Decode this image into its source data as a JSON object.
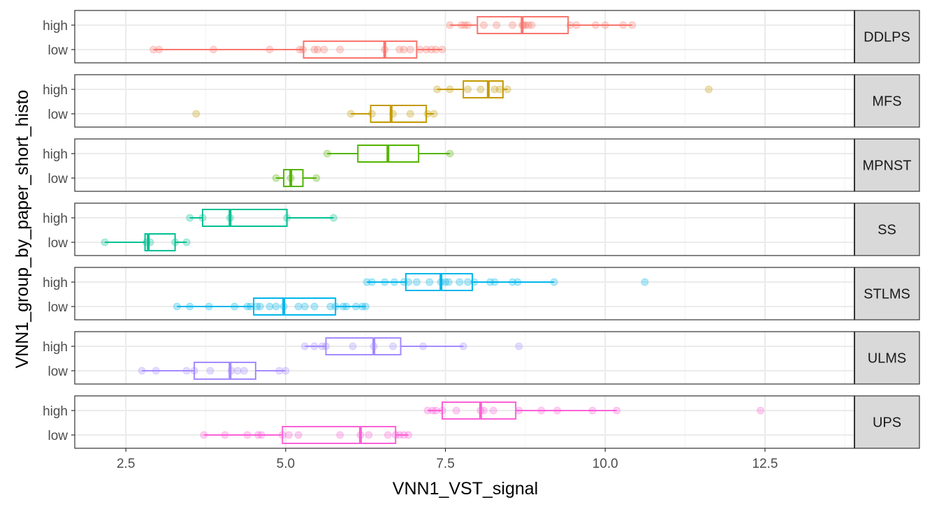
{
  "chart_data": {
    "type": "boxplot",
    "xlabel": "VNN1_VST_signal",
    "ylabel": "VNN1_group_by_paper_short_histo",
    "xlim": [
      1.7,
      13.9
    ],
    "x_ticks": [
      2.5,
      5.0,
      7.5,
      10.0,
      12.5
    ],
    "x_tick_labels": [
      "2.5",
      "5.0",
      "7.5",
      "10.0",
      "12.5"
    ],
    "categories": [
      "high",
      "low"
    ],
    "grid": true,
    "legend": "none",
    "facets": [
      {
        "label": "DDLPS",
        "color": "#F8766D",
        "groups": [
          {
            "name": "high",
            "q1": 8.0,
            "median": 8.7,
            "q3": 9.42,
            "whisker_low": 7.57,
            "whisker_high": 10.42,
            "points": [
              7.57,
              7.75,
              7.8,
              7.85,
              8.1,
              8.3,
              8.55,
              8.7,
              8.72,
              8.75,
              8.8,
              8.85,
              9.45,
              9.55,
              9.85,
              10.0,
              10.28,
              10.42
            ]
          },
          {
            "name": "low",
            "q1": 5.28,
            "median": 6.55,
            "q3": 7.05,
            "whisker_low": 2.93,
            "whisker_high": 7.45,
            "points": [
              2.93,
              3.02,
              3.87,
              4.75,
              5.22,
              5.27,
              5.45,
              5.5,
              5.6,
              5.85,
              6.55,
              6.78,
              6.85,
              6.95,
              7.1,
              7.2,
              7.28,
              7.35,
              7.45
            ]
          }
        ]
      },
      {
        "label": "MFS",
        "color": "#C49A00",
        "groups": [
          {
            "name": "high",
            "q1": 7.78,
            "median": 8.17,
            "q3": 8.4,
            "whisker_low": 7.37,
            "whisker_high": 8.47,
            "points": [
              7.37,
              7.57,
              7.85,
              8.05,
              8.27,
              8.35,
              8.47,
              11.62
            ]
          },
          {
            "name": "low",
            "q1": 6.33,
            "median": 6.65,
            "q3": 7.2,
            "whisker_low": 6.02,
            "whisker_high": 7.32,
            "points": [
              3.6,
              6.02,
              6.35,
              6.68,
              6.95,
              7.22,
              7.32
            ]
          }
        ]
      },
      {
        "label": "MPNST",
        "color": "#53B400",
        "groups": [
          {
            "name": "high",
            "q1": 6.13,
            "median": 6.6,
            "q3": 7.08,
            "whisker_low": 5.65,
            "whisker_high": 7.57,
            "points": [
              5.65,
              7.57
            ]
          },
          {
            "name": "low",
            "q1": 4.97,
            "median": 5.08,
            "q3": 5.27,
            "whisker_low": 4.85,
            "whisker_high": 5.48,
            "points": [
              4.85,
              5.08,
              5.48
            ]
          }
        ]
      },
      {
        "label": "SS",
        "color": "#00C094",
        "groups": [
          {
            "name": "high",
            "q1": 3.7,
            "median": 4.13,
            "q3": 5.02,
            "whisker_low": 3.5,
            "whisker_high": 5.75,
            "points": [
              3.5,
              3.7,
              4.13,
              5.02,
              5.75
            ]
          },
          {
            "name": "low",
            "q1": 2.8,
            "median": 2.85,
            "q3": 3.27,
            "whisker_low": 2.17,
            "whisker_high": 3.45,
            "points": [
              2.17,
              2.82,
              2.88,
              3.27,
              3.45
            ]
          }
        ]
      },
      {
        "label": "STLMS",
        "color": "#00B6EB",
        "groups": [
          {
            "name": "high",
            "q1": 6.88,
            "median": 7.43,
            "q3": 7.92,
            "whisker_low": 6.27,
            "whisker_high": 9.2,
            "points": [
              6.27,
              6.35,
              6.55,
              6.7,
              6.85,
              6.92,
              7.05,
              7.25,
              7.43,
              7.5,
              7.55,
              7.72,
              7.85,
              7.95,
              8.2,
              8.27,
              8.55,
              8.63,
              9.2,
              10.62
            ]
          },
          {
            "name": "low",
            "q1": 4.5,
            "median": 4.97,
            "q3": 5.78,
            "whisker_low": 3.3,
            "whisker_high": 6.25,
            "points": [
              3.3,
              3.5,
              3.8,
              4.2,
              4.4,
              4.45,
              4.55,
              4.6,
              4.75,
              4.85,
              4.97,
              5.2,
              5.3,
              5.45,
              5.7,
              5.78,
              5.9,
              5.95,
              6.1,
              6.2,
              6.25
            ]
          }
        ]
      },
      {
        "label": "ULMS",
        "color": "#A58AFF",
        "groups": [
          {
            "name": "high",
            "q1": 5.63,
            "median": 6.38,
            "q3": 6.8,
            "whisker_low": 5.3,
            "whisker_high": 7.78,
            "points": [
              5.3,
              5.45,
              5.57,
              5.63,
              6.05,
              6.38,
              6.68,
              7.15,
              7.78,
              8.65
            ]
          },
          {
            "name": "low",
            "q1": 3.57,
            "median": 4.13,
            "q3": 4.53,
            "whisker_low": 2.75,
            "whisker_high": 5.0,
            "points": [
              2.75,
              2.97,
              3.45,
              3.57,
              3.82,
              4.15,
              4.25,
              4.35,
              4.9,
              5.0
            ]
          }
        ]
      },
      {
        "label": "UPS",
        "color": "#FB61D7",
        "groups": [
          {
            "name": "high",
            "q1": 7.45,
            "median": 8.05,
            "q3": 8.6,
            "whisker_low": 7.22,
            "whisker_high": 10.18,
            "points": [
              7.22,
              7.3,
              7.35,
              7.45,
              7.67,
              8.05,
              8.1,
              8.25,
              8.65,
              9.0,
              9.25,
              9.8,
              10.18,
              12.43
            ]
          },
          {
            "name": "low",
            "q1": 4.95,
            "median": 6.17,
            "q3": 6.72,
            "whisker_low": 3.72,
            "whisker_high": 6.92,
            "points": [
              3.72,
              4.05,
              4.4,
              4.57,
              4.62,
              4.95,
              5.05,
              5.2,
              5.85,
              6.17,
              6.3,
              6.6,
              6.72,
              6.78,
              6.85,
              6.92
            ]
          }
        ]
      }
    ]
  }
}
